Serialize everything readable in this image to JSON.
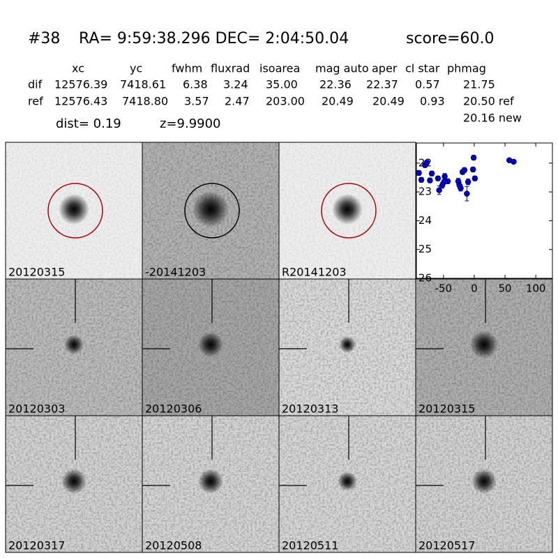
{
  "header": {
    "id": "#38",
    "coords": "RA= 9:59:38.296 DEC= 2:04:50.04",
    "score": "score=60.0"
  },
  "table": {
    "columns": [
      "xc",
      "yc",
      "fwhm",
      "fluxrad",
      "isoarea",
      "mag auto",
      "aper",
      "cl star",
      "phmag"
    ],
    "rows": [
      [
        "dif",
        "12576.39",
        "7418.61",
        "6.38",
        "3.24",
        "35.00",
        "22.36",
        "22.37",
        "0.57",
        "21.75"
      ],
      [
        "ref",
        "12576.43",
        "7418.80",
        "3.57",
        "2.47",
        "203.00",
        "20.49",
        "20.49",
        "0.93",
        "20.50 ref"
      ]
    ],
    "extra": "20.16 new",
    "dist": "dist=  0.19",
    "z": "z=9.9900"
  },
  "panels": [
    {
      "label": "20120315"
    },
    {
      "label": "-20141203"
    },
    {
      "label": "R20141203"
    },
    {
      "label": "20120303"
    },
    {
      "label": "20120306"
    },
    {
      "label": "20120313"
    },
    {
      "label": "20120315"
    },
    {
      "label": "20120317"
    },
    {
      "label": "20120508"
    },
    {
      "label": "20120511"
    },
    {
      "label": "20120517"
    }
  ],
  "chart_data": {
    "type": "scatter",
    "color": "#0000cc",
    "x": [
      -90,
      -86,
      -80,
      -77,
      -72,
      -69,
      -59,
      -57,
      -52,
      -49,
      -48,
      -43,
      -26,
      -24,
      -22,
      -19,
      -16,
      -12,
      -10,
      -2,
      -1,
      1,
      57,
      64
    ],
    "values": [
      22.34,
      22.58,
      22.07,
      21.98,
      22.6,
      22.36,
      22.53,
      22.94,
      22.77,
      22.65,
      22.46,
      22.63,
      22.63,
      22.77,
      22.87,
      22.31,
      22.24,
      23.06,
      22.65,
      22.22,
      21.81,
      22.53,
      21.9,
      21.95
    ],
    "errors": [
      0.08,
      0.08,
      0.08,
      0.08,
      0.08,
      0.08,
      0.08,
      0.15,
      0.1,
      0.08,
      0.1,
      0.08,
      0.1,
      0.1,
      0.1,
      0.08,
      0.08,
      0.25,
      0.1,
      0.08,
      0.08,
      0.08,
      0.06,
      0.06
    ],
    "xlim": [
      -94,
      127
    ],
    "ylim": [
      26,
      21.3
    ],
    "xticks": [
      -50,
      0,
      50,
      100
    ],
    "yticks": [
      22,
      23,
      24,
      25,
      26
    ]
  }
}
